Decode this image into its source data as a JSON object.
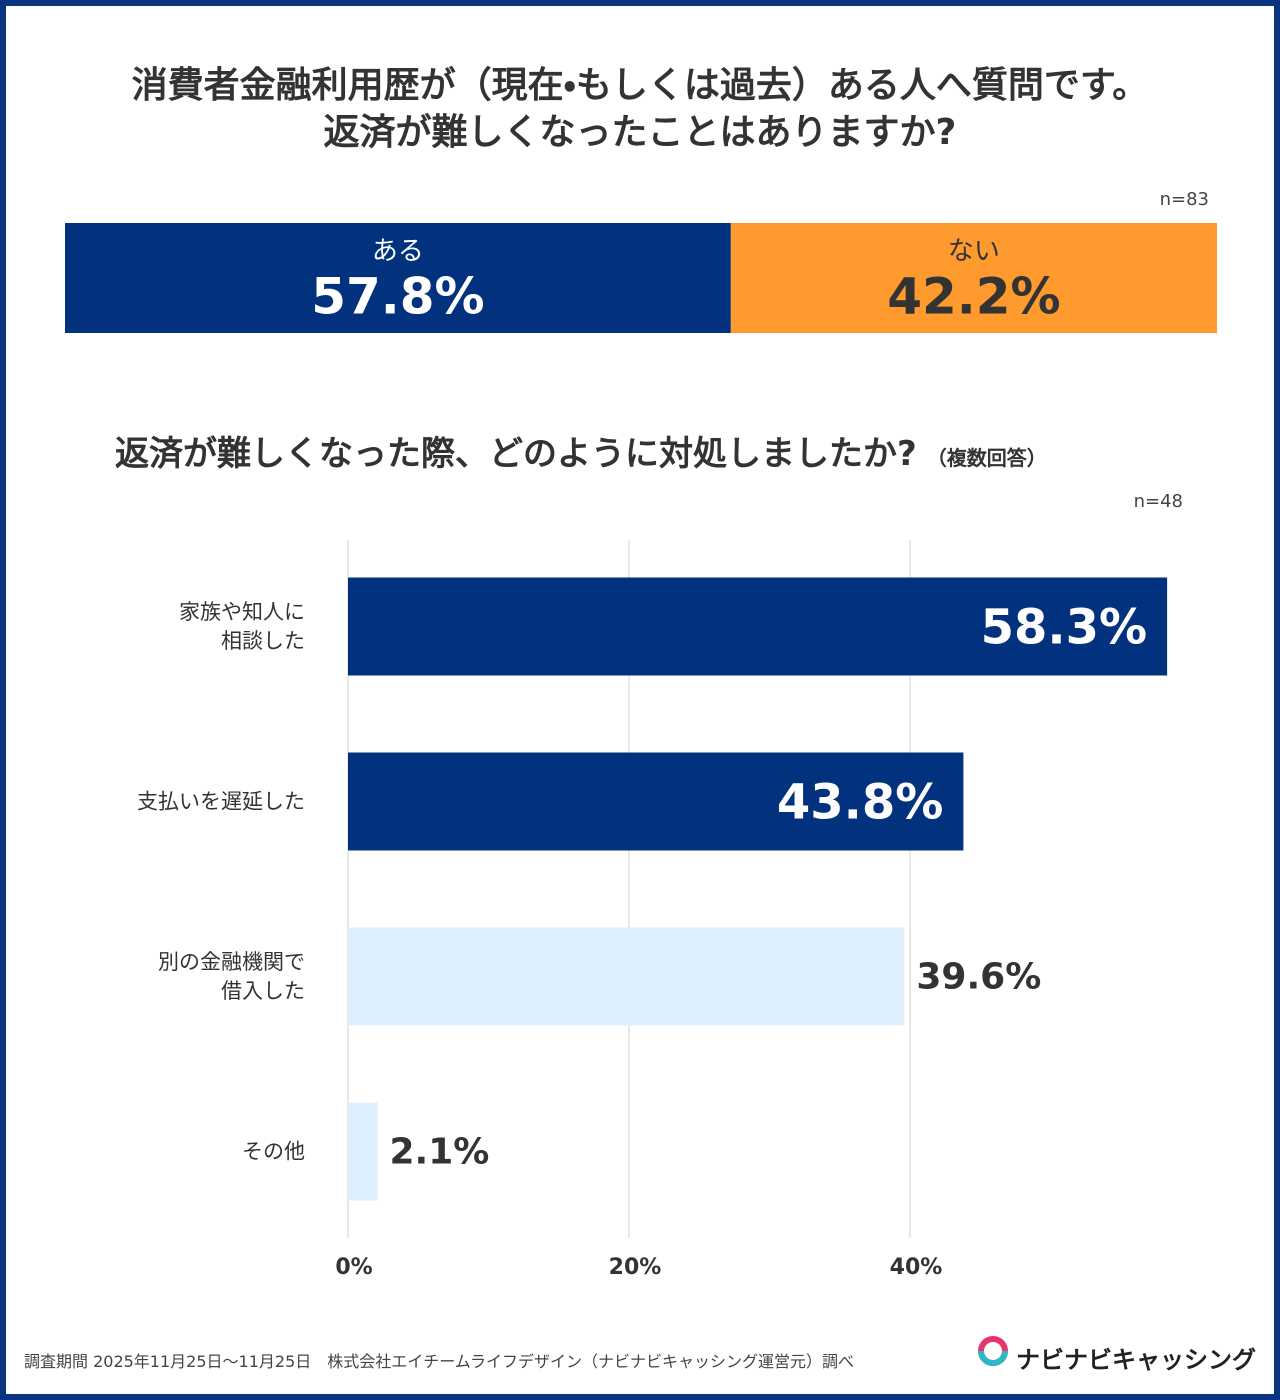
{
  "chart_data": [
    {
      "type": "stacked-bar",
      "title": "消費者金融利用歴が（現在・もしくは過去）ある人へ質問です。\n返済が難しくなったことはありますか?",
      "note": "n=83",
      "xlim": [
        0,
        100
      ],
      "series": [
        {
          "name": "ある",
          "color": "#02327e",
          "values": [
            57.8
          ],
          "value_labels": [
            "57.8%"
          ]
        },
        {
          "name": "ない",
          "color": "#fe9a2e",
          "values": [
            42.2
          ],
          "value_labels": [
            "42.2%"
          ]
        }
      ]
    },
    {
      "type": "bar",
      "orientation": "horizontal",
      "title": "返済が難しくなった際、どのように対処しましたか?",
      "subtitle": "（複数回答）",
      "note": "n=48",
      "categories": [
        "家族や知人に\n相談した",
        "支払いを遅延した",
        "別の金融機関で\n借入した",
        "その他"
      ],
      "values": [
        58.3,
        43.8,
        39.6,
        2.1
      ],
      "value_labels": [
        "58.3%",
        "43.8%",
        "39.6%",
        "2.1%"
      ],
      "colors": [
        "#02327e",
        "#02327e",
        "#ddeefc",
        "#ddeefc"
      ],
      "xlim": [
        0,
        60
      ],
      "xticks": [
        {
          "value": 0,
          "label": "0%"
        },
        {
          "value": 20,
          "label": "20%"
        },
        {
          "value": 40,
          "label": "40%"
        }
      ],
      "grid": true
    }
  ],
  "footer": {
    "note": "調査期間 2025年11月25日～11月25日　株式会社エイチームライフデザイン（ナビナビキャッシング運営元）調べ",
    "logo": "ナビナビキャッシング"
  }
}
